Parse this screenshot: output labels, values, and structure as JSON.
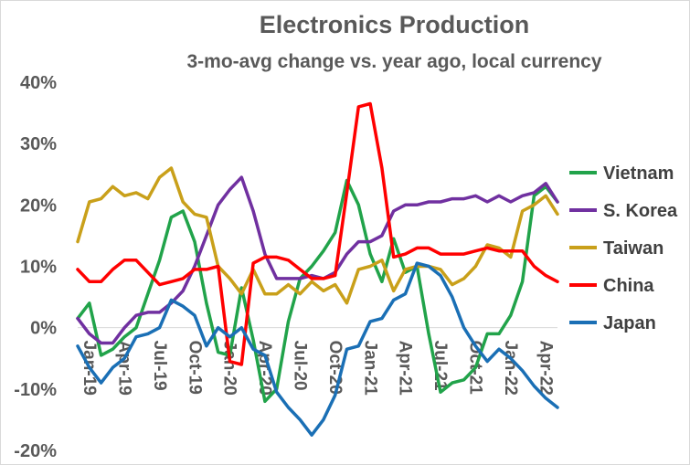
{
  "chart_data": {
    "type": "line",
    "title": "Electronics Production",
    "subtitle": "3-mo-avg change vs. year ago, local currency",
    "xlabel": "",
    "ylabel": "",
    "ylim": [
      -20,
      40
    ],
    "yticks": [
      "40%",
      "30%",
      "20%",
      "10%",
      "0%",
      "-10%",
      "-20%"
    ],
    "ytick_values": [
      40,
      30,
      20,
      10,
      0,
      -10,
      -20
    ],
    "x_tick_labels": [
      {
        "label": "Jan-19",
        "index": 0
      },
      {
        "label": "Apr-19",
        "index": 3
      },
      {
        "label": "Jul-19",
        "index": 6
      },
      {
        "label": "Oct-19",
        "index": 9
      },
      {
        "label": "Jan-20",
        "index": 12
      },
      {
        "label": "Apr-20",
        "index": 15
      },
      {
        "label": "Jul-20",
        "index": 18
      },
      {
        "label": "Oct-20",
        "index": 21
      },
      {
        "label": "Jan-21",
        "index": 24
      },
      {
        "label": "Apr-21",
        "index": 27
      },
      {
        "label": "Jul-21",
        "index": 30
      },
      {
        "label": "Oct-21",
        "index": 33
      },
      {
        "label": "Jan-22",
        "index": 36
      },
      {
        "label": "Apr-22",
        "index": 39
      }
    ],
    "x": [
      "Jan-19",
      "Feb-19",
      "Mar-19",
      "Apr-19",
      "May-19",
      "Jun-19",
      "Jul-19",
      "Aug-19",
      "Sep-19",
      "Oct-19",
      "Nov-19",
      "Dec-19",
      "Jan-20",
      "Feb-20",
      "Mar-20",
      "Apr-20",
      "May-20",
      "Jun-20",
      "Jul-20",
      "Aug-20",
      "Sep-20",
      "Oct-20",
      "Nov-20",
      "Dec-20",
      "Jan-21",
      "Feb-21",
      "Mar-21",
      "Apr-21",
      "May-21",
      "Jun-21",
      "Jul-21",
      "Aug-21",
      "Sep-21",
      "Oct-21",
      "Nov-21",
      "Dec-21",
      "Jan-22",
      "Feb-22",
      "Mar-22",
      "Apr-22",
      "May-22",
      "Jun-22"
    ],
    "grid": false,
    "legend_position": "right",
    "series": [
      {
        "name": "Vietnam",
        "color": "#21a34a",
        "values": [
          1.5,
          4,
          -4.5,
          -3.5,
          -1.5,
          0,
          5.5,
          11,
          18,
          19,
          14,
          4,
          -4,
          -4.5,
          6.5,
          -2,
          -12,
          -10,
          1,
          8,
          10,
          12.5,
          15.5,
          24,
          20,
          12,
          7.5,
          14.5,
          9,
          10,
          -1,
          -10.5,
          -9,
          -8.5,
          -6.5,
          -1,
          -1,
          2,
          7.5,
          21.5,
          23,
          20.5
        ]
      },
      {
        "name": "S. Korea",
        "color": "#7030a0",
        "values": [
          1.5,
          -1,
          -2.5,
          -2.5,
          0,
          2,
          2.5,
          2.5,
          4,
          6,
          10,
          15,
          20,
          22.5,
          24.5,
          19,
          12,
          8,
          8,
          8,
          8.5,
          8,
          9,
          12,
          14,
          14,
          15,
          19,
          20,
          20,
          20.5,
          20.5,
          21,
          21,
          21.5,
          20.5,
          21.5,
          20.5,
          21.5,
          22,
          23.5,
          20.5
        ]
      },
      {
        "name": "Taiwan",
        "color": "#c9a01a",
        "values": [
          14,
          20.5,
          21,
          23,
          21.5,
          22,
          21,
          24.5,
          26,
          20.5,
          18.5,
          18,
          10,
          8,
          5.5,
          9.5,
          5.5,
          5.5,
          7,
          5.5,
          7.5,
          6,
          7,
          4,
          9.5,
          10,
          11,
          6,
          9.5,
          10,
          10,
          9.5,
          7,
          8,
          10,
          13.5,
          13,
          11.5,
          19,
          20,
          21.5,
          18.5
        ]
      },
      {
        "name": "China",
        "color": "#ff0000",
        "values": [
          9.5,
          7.5,
          7.5,
          9.5,
          11,
          11,
          9,
          7,
          7.5,
          8,
          9.5,
          9.5,
          10,
          -5.5,
          -6,
          10.5,
          11.5,
          11.5,
          11,
          9.5,
          8,
          8,
          8.5,
          22,
          36,
          36.5,
          26,
          11.5,
          12,
          13,
          13,
          12,
          12,
          12,
          12.5,
          13,
          12.5,
          12.5,
          12.5,
          10,
          8.5,
          7.5
        ]
      },
      {
        "name": "Japan",
        "color": "#1a6fb5",
        "values": [
          -3,
          -6.5,
          -9,
          -6.5,
          -5,
          -1.5,
          -1,
          0,
          4.5,
          3.5,
          2,
          -3,
          0,
          -1.5,
          0,
          -3.5,
          -4.5,
          -10.5,
          -13,
          -15,
          -17.5,
          -15,
          -11,
          -3.5,
          -3,
          1,
          1.5,
          4.5,
          5.5,
          10.5,
          10,
          8.5,
          5,
          0,
          -3,
          -5.5,
          -3.5,
          -5,
          -7,
          -9.5,
          -11.5,
          -13
        ]
      }
    ]
  }
}
